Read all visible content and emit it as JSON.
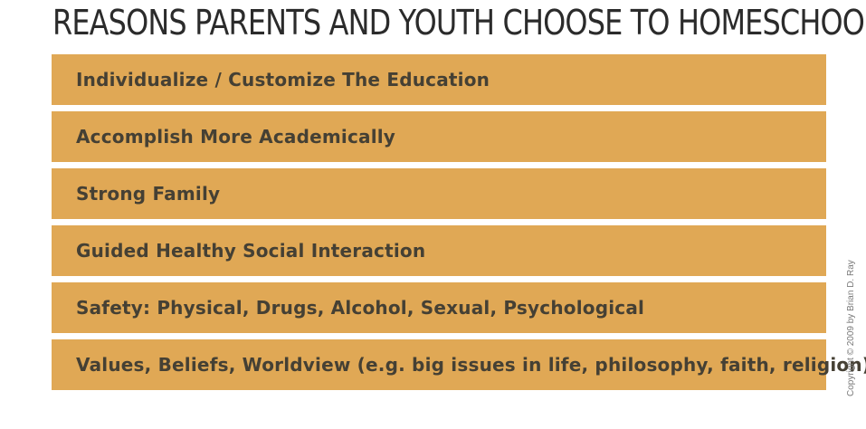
{
  "title": "REASONS PARENTS AND YOUTH CHOOSE TO HOMESCHOOL",
  "reasons": [
    "Individualize / Customize The Education",
    "Accomplish More Academically",
    "Strong Family",
    "Guided Healthy Social Interaction",
    "Safety: Physical, Drugs, Alcohol, Sexual, Psychological",
    "Values, Beliefs, Worldview (e.g. big issues in life, philosophy, faith, religion)"
  ],
  "copyright": "Copyright © 2009 by Brian D. Ray",
  "colors": {
    "row_background": "#e0a855",
    "row_text": "#454034",
    "title_text": "#2b2b2b"
  }
}
